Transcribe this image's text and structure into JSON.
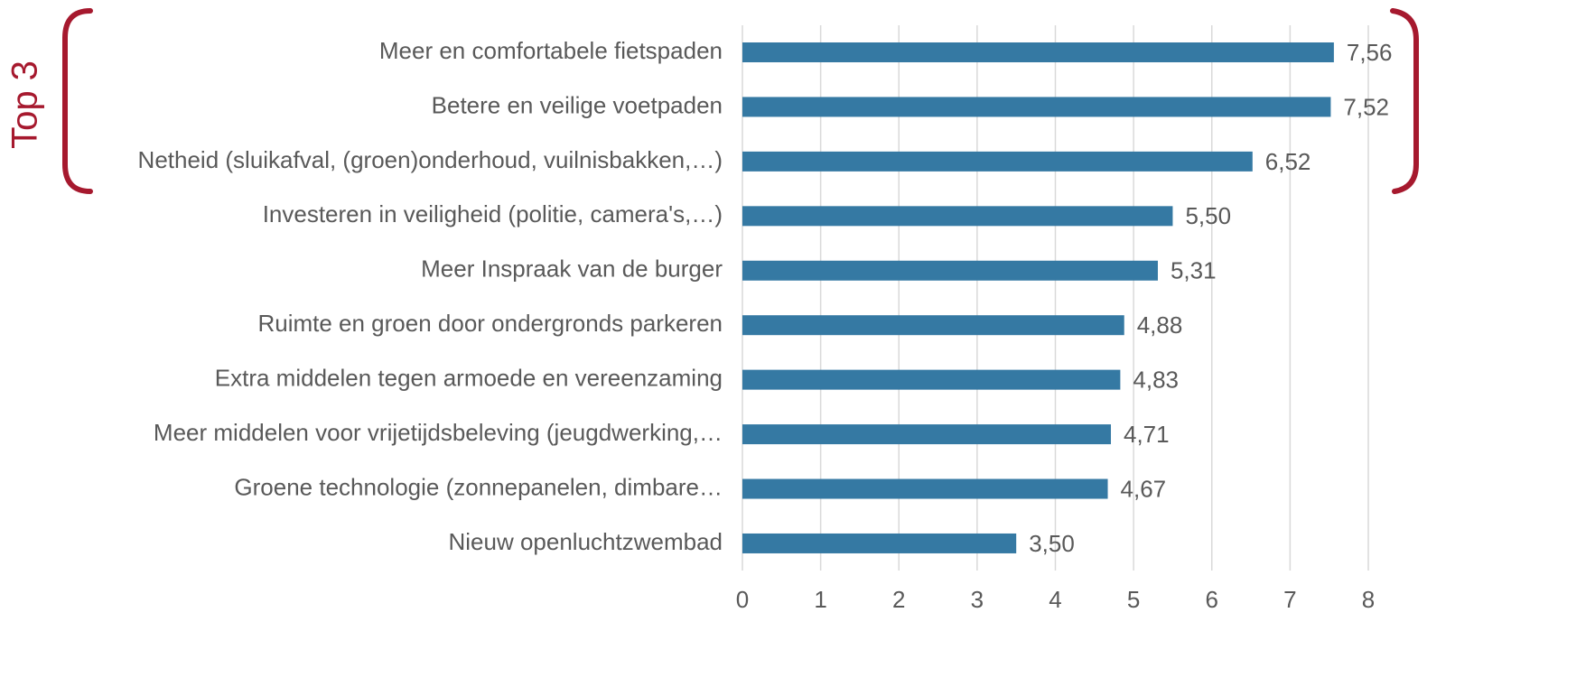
{
  "chart_data": {
    "type": "barh",
    "annotation": "Top 3",
    "categories": [
      "Meer en comfortabele fietspaden",
      "Betere en veilige voetpaden",
      "Netheid (sluikafval, (groen)onderhoud, vuilnisbakken,…)",
      "Investeren in veiligheid (politie, camera's,…)",
      "Meer Inspraak van de burger",
      "Ruimte en groen door ondergronds parkeren",
      "Extra middelen tegen armoede en vereenzaming",
      "Meer middelen voor vrijetijdsbeleving (jeugdwerking,…",
      "Groene technologie (zonnepanelen, dimbare…",
      "Nieuw openluchtzwembad"
    ],
    "values": [
      7.56,
      7.52,
      6.52,
      5.5,
      5.31,
      4.88,
      4.83,
      4.71,
      4.67,
      3.5
    ],
    "value_labels": [
      "7,56",
      "7,52",
      "6,52",
      "5,50",
      "5,31",
      "4,88",
      "4,83",
      "4,71",
      "4,67",
      "3,50"
    ],
    "color": "#3579a3",
    "xlim": [
      0,
      8
    ],
    "xticks": [
      0,
      1,
      2,
      3,
      4,
      5,
      6,
      7,
      8
    ],
    "grid": true
  }
}
